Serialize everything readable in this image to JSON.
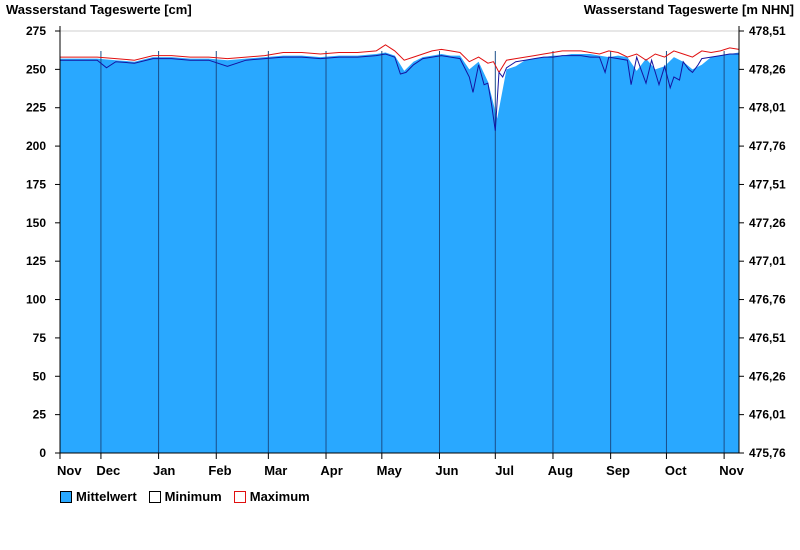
{
  "chart_data": {
    "type": "area",
    "title_left": "Wasserstand Tageswerte [cm]",
    "title_right": "Wasserstand Tageswerte [m NHN]",
    "y_left": {
      "min": 0,
      "max": 275,
      "ticks": [
        0,
        25,
        50,
        75,
        100,
        125,
        150,
        175,
        200,
        225,
        250,
        275
      ]
    },
    "y_right": {
      "ticks": [
        "475,76",
        "476,01",
        "476,26",
        "476,51",
        "476,76",
        "477,01",
        "477,26",
        "477,51",
        "477,76",
        "478,01",
        "478,26",
        "478,51"
      ]
    },
    "months": [
      "Nov",
      "Dec",
      "Jan",
      "Feb",
      "Mar",
      "Apr",
      "May",
      "Jun",
      "Jul",
      "Aug",
      "Sep",
      "Oct",
      "Nov"
    ],
    "series": [
      {
        "name": "Mittelwert",
        "color": "#29a8ff",
        "x": [
          0,
          5,
          10,
          20,
          30,
          40,
          50,
          60,
          70,
          80,
          90,
          100,
          110,
          120,
          130,
          140,
          150,
          160,
          170,
          175,
          180,
          185,
          190,
          195,
          200,
          205,
          210,
          215,
          220,
          225,
          230,
          235,
          240,
          245,
          250,
          255,
          260,
          265,
          270,
          275,
          280,
          285,
          290,
          295,
          300,
          305,
          310,
          315,
          320,
          325,
          330,
          335,
          340,
          345,
          350,
          355,
          360,
          365
        ],
        "values": [
          257,
          257,
          257,
          257,
          256,
          255,
          258,
          258,
          257,
          257,
          256,
          257,
          258,
          259,
          259,
          258,
          259,
          259,
          260,
          261,
          259,
          249,
          255,
          258,
          259,
          260,
          259,
          259,
          250,
          255,
          242,
          218,
          250,
          252,
          256,
          257,
          258,
          259,
          259,
          260,
          260,
          260,
          259,
          258,
          259,
          258,
          249,
          257,
          250,
          252,
          258,
          255,
          250,
          253,
          258,
          259,
          260,
          261
        ]
      },
      {
        "name": "Minimum",
        "color": "#1414a0",
        "x": [
          0,
          5,
          10,
          20,
          25,
          30,
          40,
          50,
          60,
          70,
          80,
          90,
          100,
          110,
          120,
          130,
          140,
          150,
          160,
          170,
          175,
          180,
          183,
          186,
          190,
          195,
          200,
          205,
          210,
          215,
          220,
          222,
          225,
          228,
          230,
          232,
          234,
          236,
          238,
          240,
          245,
          250,
          255,
          260,
          265,
          270,
          275,
          280,
          285,
          290,
          293,
          295,
          300,
          305,
          307,
          310,
          312,
          315,
          318,
          320,
          322,
          325,
          328,
          330,
          333,
          335,
          338,
          340,
          343,
          345,
          350,
          355,
          360,
          365
        ],
        "values": [
          256,
          256,
          256,
          256,
          251,
          255,
          254,
          257,
          257,
          256,
          256,
          252,
          256,
          257,
          258,
          258,
          257,
          258,
          258,
          259,
          260,
          258,
          247,
          248,
          253,
          257,
          258,
          259,
          258,
          257,
          245,
          235,
          253,
          240,
          241,
          227,
          210,
          248,
          245,
          251,
          255,
          256,
          257,
          258,
          258,
          259,
          259,
          259,
          258,
          258,
          248,
          258,
          257,
          256,
          240,
          258,
          251,
          241,
          256,
          248,
          240,
          252,
          238,
          245,
          243,
          255,
          250,
          248,
          253,
          257,
          258,
          259,
          260,
          260
        ]
      },
      {
        "name": "Maximum",
        "color": "#e01010",
        "x": [
          0,
          5,
          10,
          20,
          30,
          40,
          50,
          60,
          70,
          80,
          90,
          100,
          110,
          120,
          130,
          140,
          150,
          160,
          170,
          175,
          180,
          185,
          190,
          195,
          200,
          205,
          210,
          215,
          220,
          225,
          230,
          233,
          236,
          240,
          245,
          250,
          255,
          260,
          265,
          270,
          275,
          280,
          285,
          290,
          295,
          300,
          305,
          310,
          315,
          320,
          325,
          330,
          335,
          340,
          345,
          350,
          355,
          360,
          365
        ],
        "values": [
          258,
          258,
          258,
          258,
          257,
          256,
          259,
          259,
          258,
          258,
          257,
          258,
          259,
          261,
          261,
          260,
          261,
          261,
          262,
          266,
          262,
          256,
          258,
          260,
          262,
          263,
          262,
          261,
          255,
          258,
          254,
          255,
          248,
          256,
          257,
          258,
          259,
          260,
          261,
          262,
          262,
          262,
          261,
          260,
          262,
          261,
          258,
          260,
          256,
          260,
          258,
          262,
          260,
          258,
          262,
          261,
          262,
          264,
          263
        ]
      }
    ]
  },
  "legend": {
    "mittelwert": "Mittelwert",
    "minimum": "Minimum",
    "maximum": "Maximum"
  }
}
